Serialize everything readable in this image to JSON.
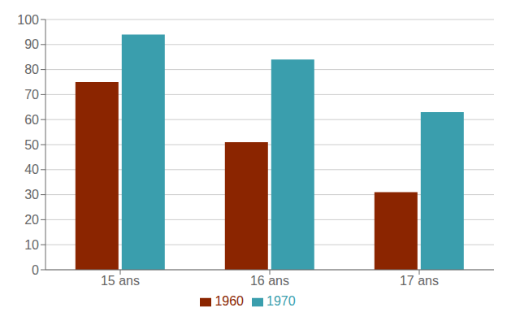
{
  "chart_data": {
    "type": "bar",
    "categories": [
      "15 ans",
      "16 ans",
      "17 ans"
    ],
    "series": [
      {
        "name": "1960",
        "color": "#8B2500",
        "values": [
          75,
          51,
          31
        ]
      },
      {
        "name": "1970",
        "color": "#3A9EAD",
        "values": [
          94,
          84,
          63
        ]
      }
    ],
    "ylim": [
      0,
      100
    ],
    "yticks": [
      0,
      10,
      20,
      30,
      40,
      50,
      60,
      70,
      80,
      90,
      100
    ],
    "grid": true,
    "legend": "bottom"
  }
}
